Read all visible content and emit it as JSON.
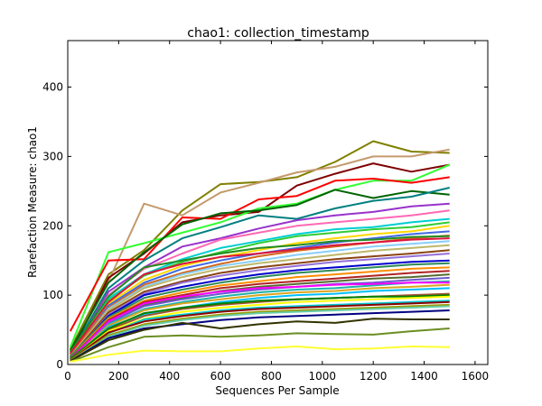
{
  "chart_data": {
    "type": "line",
    "title": "chao1: collection_timestamp",
    "xlabel": "Sequences Per Sample",
    "ylabel": "Rarefaction Measure: chao1",
    "xlim": [
      0,
      1650
    ],
    "ylim": [
      0,
      467
    ],
    "x_ticks": [
      0,
      200,
      400,
      600,
      800,
      1000,
      1200,
      1400,
      1600
    ],
    "y_ticks": [
      0,
      100,
      200,
      300,
      400
    ],
    "grid": false,
    "x": [
      10,
      160,
      300,
      450,
      600,
      750,
      900,
      1050,
      1200,
      1350,
      1500
    ],
    "series": [
      {
        "color": "#808000",
        "values": [
          22,
          130,
          165,
          222,
          260,
          263,
          270,
          292,
          322,
          307,
          305
        ]
      },
      {
        "color": "#c49a6c",
        "values": [
          18,
          120,
          232,
          215,
          248,
          262,
          277,
          285,
          300,
          300,
          310
        ]
      },
      {
        "color": "#800000",
        "values": [
          15,
          125,
          160,
          205,
          215,
          220,
          258,
          275,
          290,
          278,
          288
        ]
      },
      {
        "color": "#33ff33",
        "values": [
          25,
          162,
          175,
          190,
          205,
          225,
          232,
          252,
          265,
          265,
          288
        ]
      },
      {
        "color": "#ff0000",
        "values": [
          48,
          150,
          152,
          212,
          210,
          238,
          243,
          265,
          268,
          262,
          270
        ]
      },
      {
        "color": "#006400",
        "values": [
          20,
          118,
          162,
          202,
          218,
          222,
          230,
          252,
          240,
          250,
          245
        ]
      },
      {
        "color": "#008080",
        "values": [
          15,
          110,
          150,
          182,
          198,
          215,
          210,
          225,
          236,
          242,
          255
        ]
      },
      {
        "color": "#9932cc",
        "values": [
          10,
          105,
          140,
          170,
          182,
          196,
          208,
          215,
          220,
          228,
          232
        ]
      },
      {
        "color": "#ff69b4",
        "values": [
          12,
          100,
          138,
          160,
          180,
          190,
          200,
          205,
          210,
          215,
          222
        ]
      },
      {
        "color": "#00ced1",
        "values": [
          8,
          95,
          130,
          152,
          168,
          178,
          188,
          195,
          198,
          205,
          210
        ]
      },
      {
        "color": "#32cd32",
        "values": [
          15,
          92,
          128,
          148,
          162,
          175,
          185,
          190,
          195,
          198,
          205
        ]
      },
      {
        "color": "#ffd700",
        "values": [
          10,
          88,
          122,
          142,
          155,
          165,
          175,
          182,
          188,
          192,
          200
        ]
      },
      {
        "color": "#4169e1",
        "values": [
          12,
          85,
          118,
          138,
          150,
          160,
          168,
          176,
          182,
          188,
          192
        ]
      },
      {
        "color": "#d2691e",
        "values": [
          14,
          82,
          115,
          132,
          145,
          156,
          164,
          170,
          176,
          182,
          186
        ]
      },
      {
        "color": "#228b22",
        "values": [
          18,
          98,
          140,
          150,
          160,
          168,
          172,
          178,
          180,
          184,
          185
        ]
      },
      {
        "color": "#dc143c",
        "values": [
          16,
          90,
          130,
          145,
          155,
          160,
          166,
          172,
          176,
          180,
          182
        ]
      },
      {
        "color": "#87cefa",
        "values": [
          10,
          80,
          112,
          130,
          142,
          150,
          158,
          164,
          170,
          174,
          178
        ]
      },
      {
        "color": "#bdb76b",
        "values": [
          12,
          78,
          110,
          126,
          138,
          146,
          152,
          158,
          164,
          168,
          172
        ]
      },
      {
        "color": "#8b4513",
        "values": [
          10,
          75,
          105,
          120,
          132,
          140,
          146,
          152,
          156,
          160,
          165
        ]
      },
      {
        "color": "#9370db",
        "values": [
          8,
          72,
          102,
          118,
          128,
          136,
          142,
          148,
          152,
          156,
          160
        ]
      },
      {
        "color": "#0000cd",
        "values": [
          10,
          70,
          100,
          112,
          122,
          130,
          136,
          140,
          144,
          148,
          150
        ]
      },
      {
        "color": "#2e8b57",
        "values": [
          12,
          68,
          96,
          108,
          118,
          126,
          132,
          136,
          140,
          144,
          146
        ]
      },
      {
        "color": "#ff8c00",
        "values": [
          10,
          66,
          92,
          104,
          114,
          120,
          126,
          130,
          134,
          138,
          140
        ]
      },
      {
        "color": "#b22222",
        "values": [
          8,
          64,
          90,
          100,
          110,
          116,
          120,
          124,
          128,
          132,
          135
        ]
      },
      {
        "color": "#556b2f",
        "values": [
          10,
          62,
          86,
          96,
          106,
          112,
          116,
          120,
          124,
          126,
          130
        ]
      },
      {
        "color": "#6a5acd",
        "values": [
          8,
          60,
          84,
          94,
          102,
          108,
          112,
          116,
          118,
          122,
          125
        ]
      },
      {
        "color": "#20b2aa",
        "values": [
          6,
          58,
          80,
          90,
          98,
          104,
          108,
          110,
          114,
          118,
          120
        ]
      },
      {
        "color": "#daa520",
        "values": [
          8,
          56,
          78,
          88,
          94,
          100,
          104,
          106,
          110,
          112,
          115
        ]
      },
      {
        "color": "#00bfff",
        "values": [
          6,
          54,
          72,
          82,
          90,
          96,
          100,
          102,
          106,
          108,
          110
        ]
      },
      {
        "color": "#ff00ff",
        "values": [
          8,
          62,
          88,
          98,
          105,
          110,
          112,
          115,
          116,
          118,
          118
        ]
      },
      {
        "color": "#a0522d",
        "values": [
          6,
          50,
          70,
          80,
          86,
          90,
          94,
          96,
          98,
          100,
          102
        ]
      },
      {
        "color": "#008000",
        "values": [
          8,
          52,
          74,
          82,
          88,
          92,
          94,
          96,
          98,
          98,
          100
        ]
      },
      {
        "color": "#ffff00",
        "values": [
          6,
          48,
          66,
          76,
          82,
          86,
          90,
          92,
          94,
          96,
          98
        ]
      },
      {
        "color": "#00c5cd",
        "values": [
          6,
          45,
          65,
          72,
          78,
          82,
          84,
          86,
          88,
          90,
          92
        ]
      },
      {
        "color": "#8b0000",
        "values": [
          6,
          46,
          62,
          70,
          76,
          80,
          82,
          84,
          86,
          88,
          90
        ]
      },
      {
        "color": "#999900",
        "values": [
          6,
          42,
          58,
          66,
          72,
          76,
          78,
          80,
          82,
          84,
          86
        ]
      },
      {
        "color": "#66cdaa",
        "values": [
          5,
          40,
          56,
          64,
          70,
          74,
          76,
          78,
          80,
          82,
          84
        ]
      },
      {
        "color": "#000080",
        "values": [
          5,
          38,
          52,
          58,
          64,
          68,
          70,
          72,
          74,
          76,
          78
        ]
      },
      {
        "color": "#333300",
        "values": [
          5,
          35,
          50,
          60,
          52,
          58,
          62,
          60,
          66,
          65,
          65
        ]
      },
      {
        "color": "#6b8e23",
        "values": [
          4,
          25,
          40,
          42,
          40,
          42,
          45,
          44,
          43,
          48,
          52
        ]
      },
      {
        "color": "#ffff33",
        "values": [
          4,
          14,
          20,
          19,
          19,
          23,
          26,
          22,
          23,
          26,
          25
        ]
      }
    ]
  }
}
